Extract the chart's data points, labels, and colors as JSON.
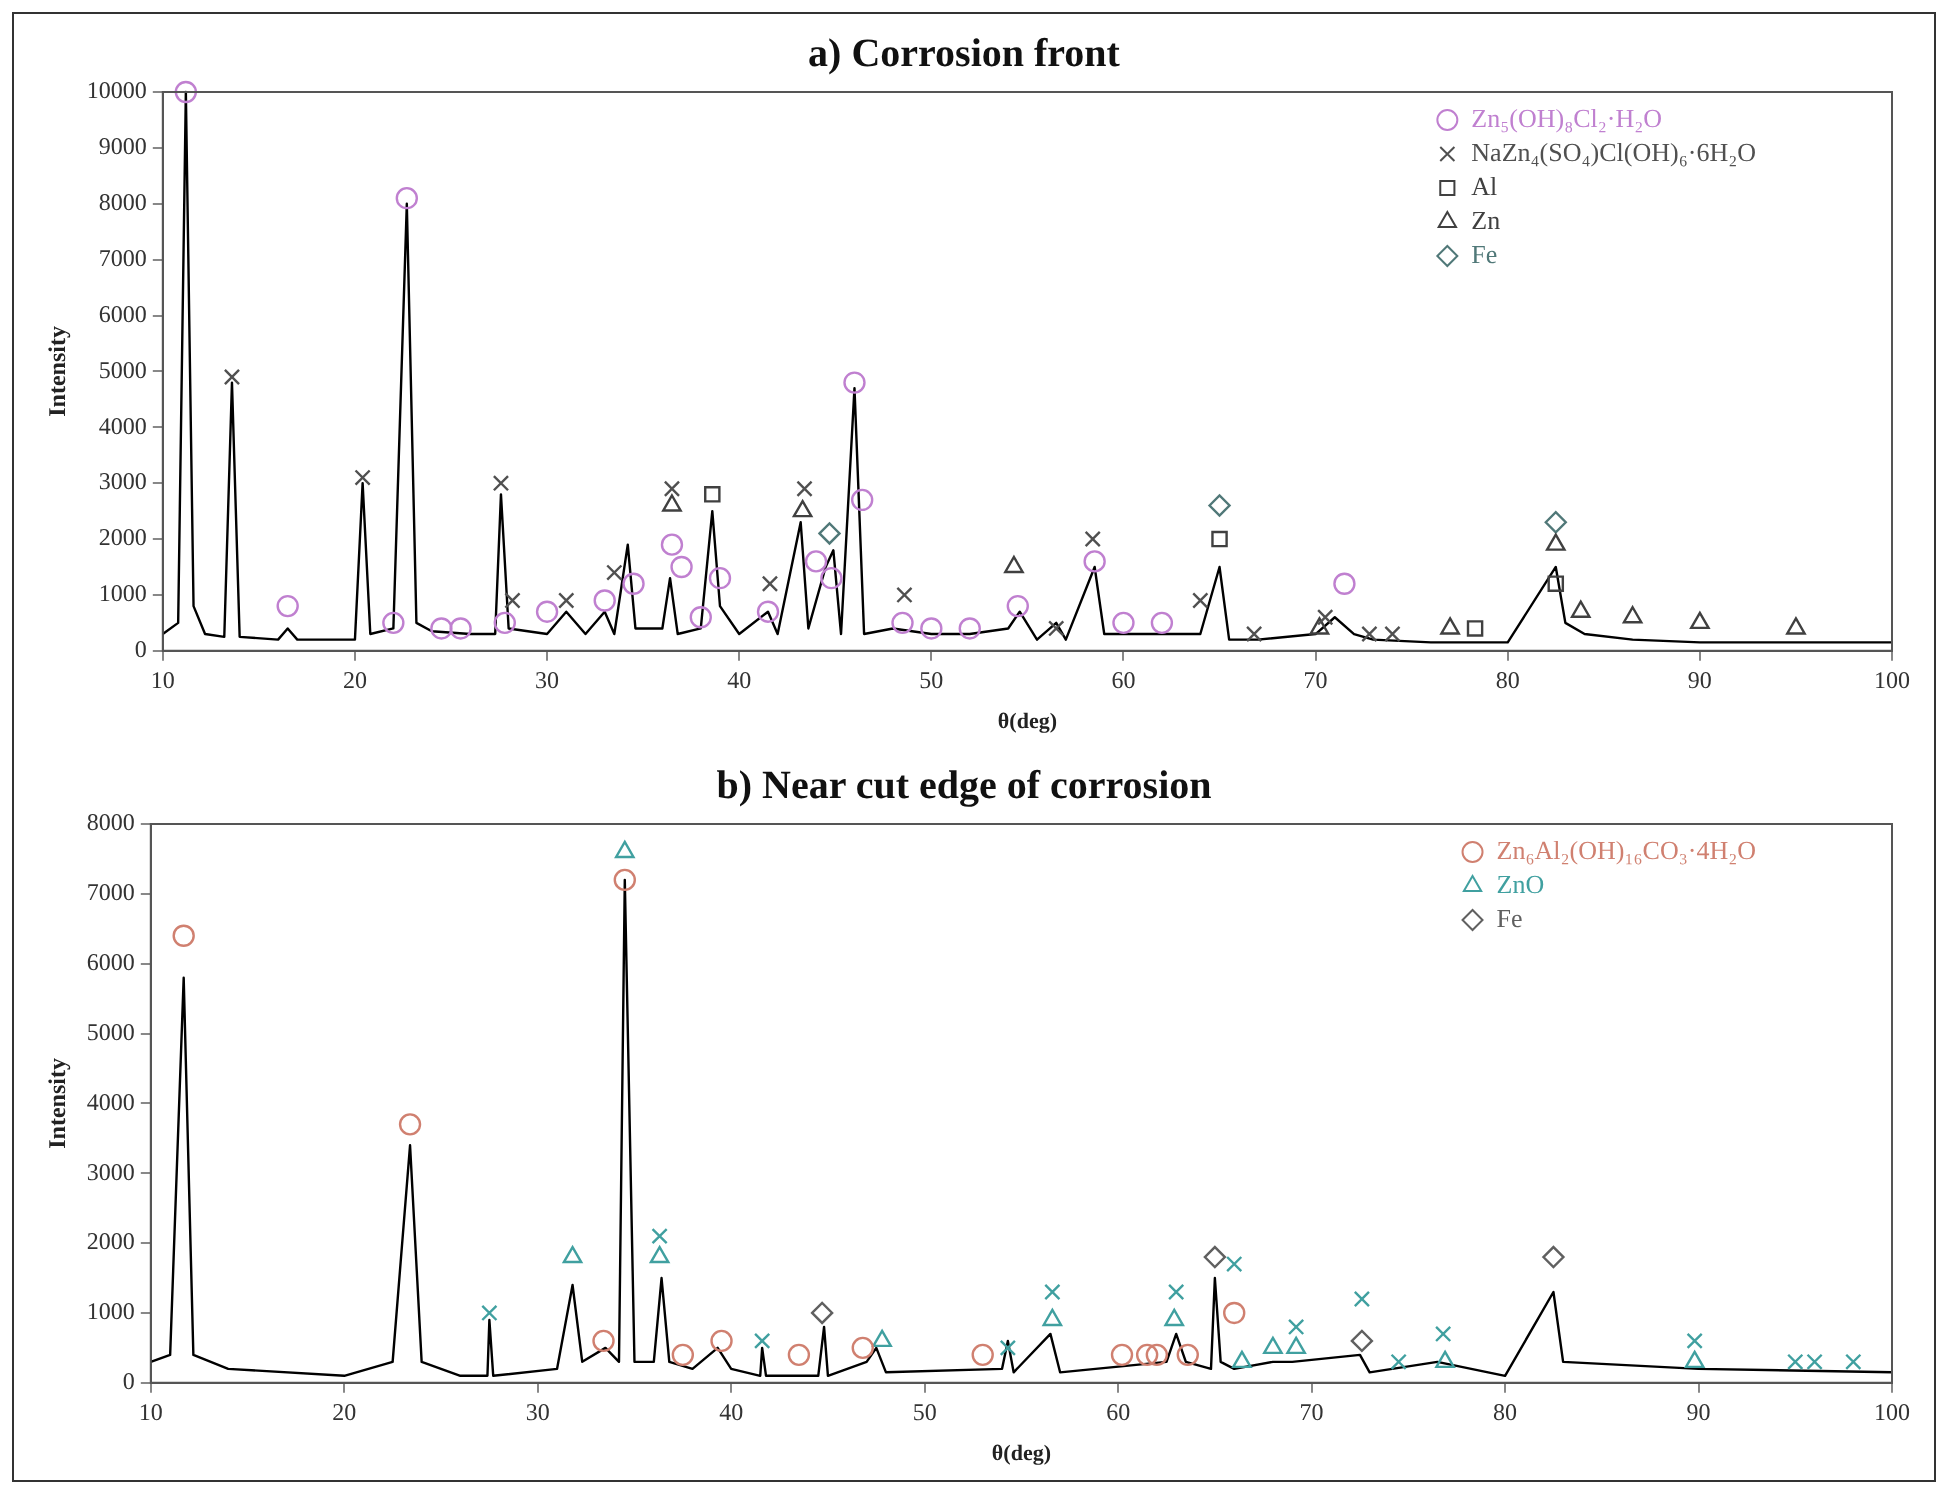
{
  "chart_data": [
    {
      "type": "line",
      "title": "a) Corrosion front",
      "xlabel": "θ(deg)",
      "ylabel": "Intensity",
      "xlim": [
        10,
        100
      ],
      "xticks": [
        10,
        20,
        30,
        40,
        50,
        60,
        70,
        80,
        90,
        100
      ],
      "ylim": [
        0,
        10000
      ],
      "yticks": [
        0,
        1000,
        2000,
        3000,
        4000,
        5000,
        6000,
        7000,
        8000,
        9000,
        10000
      ],
      "grid": false,
      "legend": "top right",
      "series": [
        {
          "type": "line",
          "color": "#000000",
          "marker": "none",
          "x": [
            10,
            10.8,
            11.2,
            11.6,
            12.2,
            13.2,
            13.6,
            14,
            16,
            16.5,
            17,
            20,
            20.4,
            20.8,
            22,
            22.7,
            23.2,
            24,
            26,
            27.3,
            27.6,
            28,
            30,
            31,
            32,
            33,
            33.5,
            34.2,
            34.6,
            36,
            36.4,
            36.8,
            38,
            38.6,
            39,
            40,
            41.5,
            42,
            43.2,
            43.6,
            44.5,
            44.9,
            45.3,
            46,
            46.5,
            48,
            50,
            52,
            54,
            54.6,
            55.5,
            56.5,
            57,
            58.5,
            59,
            62,
            64,
            65,
            65.5,
            67,
            70,
            71,
            72,
            73,
            76,
            80,
            82.5,
            83,
            84,
            86.5,
            90,
            95,
            100
          ],
          "values": [
            300,
            500,
            10000,
            800,
            300,
            250,
            4800,
            250,
            200,
            400,
            200,
            200,
            3000,
            300,
            400,
            8000,
            500,
            350,
            300,
            300,
            2800,
            400,
            300,
            700,
            300,
            700,
            300,
            1900,
            400,
            400,
            1300,
            300,
            400,
            2500,
            800,
            300,
            700,
            300,
            2300,
            400,
            1500,
            1800,
            300,
            4700,
            300,
            400,
            300,
            300,
            400,
            700,
            200,
            500,
            200,
            1500,
            300,
            300,
            300,
            1500,
            200,
            200,
            300,
            600,
            300,
            200,
            150,
            150,
            1500,
            500,
            300,
            200,
            150,
            150,
            150
          ]
        },
        {
          "type": "scatter",
          "name": "Zn₅(OH)₈Cl₂·H₂O",
          "color": "#c080d0",
          "marker": "circle",
          "x": [
            11.2,
            16.5,
            22.7,
            22,
            24.5,
            25.5,
            27.8,
            30,
            33,
            34.5,
            36.5,
            37,
            38,
            39,
            41.5,
            44,
            44.8,
            46,
            46.4,
            48.5,
            50,
            52,
            54.5,
            58.5,
            60,
            62,
            71.5
          ],
          "values": [
            10000,
            800,
            8100,
            500,
            400,
            400,
            500,
            700,
            900,
            1200,
            1900,
            1500,
            600,
            1300,
            700,
            1600,
            1300,
            4800,
            2700,
            500,
            400,
            400,
            800,
            1600,
            500,
            500,
            1200
          ]
        },
        {
          "type": "scatter",
          "name": "NaZn₄(SO₄)Cl(OH)₆·6H₂O",
          "color": "#505050",
          "marker": "cross",
          "x": [
            13.6,
            20.4,
            27.6,
            28.2,
            31,
            33.5,
            36.5,
            41.6,
            43.4,
            48.6,
            56.5,
            58.4,
            64,
            66.8,
            70.5,
            72.8,
            74
          ],
          "values": [
            4900,
            3100,
            3000,
            900,
            900,
            1400,
            2900,
            1200,
            2900,
            1000,
            400,
            2000,
            900,
            300,
            600,
            300,
            300
          ]
        },
        {
          "type": "scatter",
          "name": "Al",
          "color": "#404040",
          "marker": "square",
          "x": [
            38.6,
            65,
            78.3,
            82.5
          ],
          "values": [
            2800,
            2000,
            400,
            1200
          ]
        },
        {
          "type": "scatter",
          "name": "Zn",
          "color": "#404040",
          "marker": "triangle",
          "x": [
            36.5,
            43.3,
            54.3,
            70.2,
            77,
            82.5,
            83.8,
            86.5,
            90,
            95
          ],
          "values": [
            2600,
            2500,
            1500,
            400,
            400,
            1900,
            700,
            600,
            500,
            400
          ]
        },
        {
          "type": "scatter",
          "name": "Fe",
          "color": "#507878",
          "marker": "diamond",
          "x": [
            44.7,
            65,
            82.5
          ],
          "values": [
            2100,
            2600,
            2300
          ]
        }
      ]
    },
    {
      "type": "line",
      "title": "b) Near cut edge of corrosion",
      "xlabel": "θ(deg)",
      "ylabel": "Intensity",
      "xlim": [
        10,
        100
      ],
      "xticks": [
        10,
        20,
        30,
        40,
        50,
        60,
        70,
        80,
        90,
        100
      ],
      "ylim": [
        0,
        8000
      ],
      "yticks": [
        0,
        1000,
        2000,
        3000,
        4000,
        5000,
        6000,
        7000,
        8000
      ],
      "grid": false,
      "legend": "top right",
      "series": [
        {
          "type": "line",
          "color": "#000000",
          "marker": "none",
          "x": [
            10,
            11,
            11.7,
            12.2,
            14,
            20,
            22.5,
            23.4,
            24,
            26,
            27.4,
            27.5,
            27.7,
            31,
            31.8,
            32.3,
            33.5,
            34.2,
            34.5,
            35,
            36,
            36.4,
            36.8,
            38,
            39.3,
            40,
            41.5,
            41.6,
            41.8,
            44.5,
            44.8,
            45,
            47,
            47.5,
            48,
            54,
            54.3,
            54.6,
            56.5,
            57,
            62.5,
            63,
            63.5,
            64.8,
            65,
            65.3,
            66,
            68,
            69,
            72.5,
            73,
            76.5,
            80,
            82.5,
            83,
            90,
            100
          ],
          "values": [
            300,
            400,
            5800,
            400,
            200,
            100,
            300,
            3400,
            300,
            100,
            100,
            900,
            100,
            200,
            1400,
            300,
            500,
            300,
            7200,
            300,
            300,
            1500,
            300,
            200,
            500,
            200,
            100,
            500,
            100,
            100,
            800,
            100,
            300,
            500,
            150,
            200,
            600,
            150,
            700,
            150,
            300,
            700,
            300,
            200,
            1500,
            300,
            200,
            300,
            300,
            400,
            150,
            300,
            100,
            1300,
            300,
            200,
            150
          ]
        },
        {
          "type": "scatter",
          "name": "Zn₆Al₂(OH)₁₆CO₃·4H₂O",
          "color": "#d08070",
          "marker": "circle",
          "x": [
            11.7,
            23.4,
            33.4,
            34.5,
            37.5,
            39.5,
            43.5,
            46.8,
            53,
            60.2,
            61.5,
            62,
            63.6,
            66
          ],
          "values": [
            6400,
            3700,
            600,
            7200,
            400,
            600,
            400,
            500,
            400,
            400,
            400,
            400,
            400,
            1000
          ]
        },
        {
          "type": "scatter",
          "name": "ZnO",
          "color": "#40a0a0",
          "marker": "triangle",
          "x": [
            31.8,
            34.5,
            36.3,
            47.8,
            56.6,
            62.9,
            66.4,
            68,
            69.2,
            76.9,
            89.8
          ],
          "values": [
            1800,
            7600,
            1800,
            600,
            900,
            900,
            300,
            500,
            500,
            300,
            300
          ]
        },
        {
          "type": "scatter",
          "name": "Fe",
          "color": "#606060",
          "marker": "diamond",
          "x": [
            44.7,
            65,
            72.6,
            82.5
          ],
          "values": [
            1000,
            1800,
            600,
            1800
          ]
        },
        {
          "type": "scatter",
          "color": "#40a0a0",
          "marker": "cross",
          "x": [
            27.5,
            36.3,
            41.6,
            54.3,
            56.6,
            63,
            66,
            69.2,
            72.6,
            74.5,
            76.8,
            89.8,
            95,
            96,
            98
          ],
          "values": [
            1000,
            2100,
            600,
            500,
            1300,
            1300,
            1700,
            800,
            1200,
            300,
            700,
            600,
            300,
            300,
            300
          ]
        }
      ]
    }
  ]
}
